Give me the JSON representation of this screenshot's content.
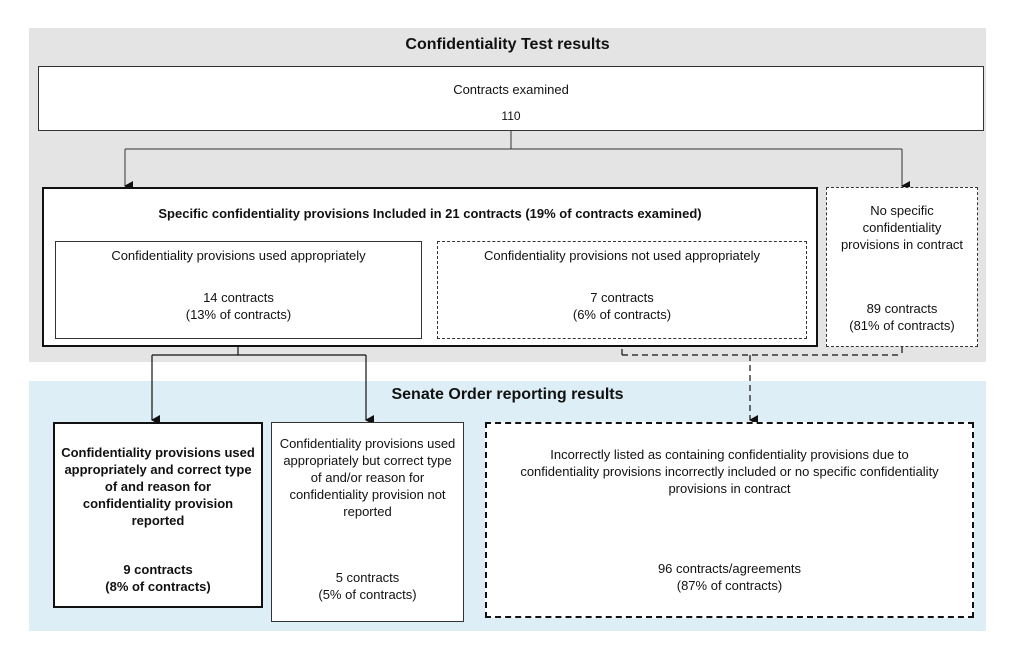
{
  "top_panel": {
    "title": "Confidentiality Test results",
    "examined": {
      "label": "Contracts examined",
      "count": "110"
    },
    "included": {
      "title": "Specific confidentiality provisions Included in 21 contracts (19% of contracts examined)",
      "appropriate": {
        "label": "Confidentiality provisions used appropriately",
        "count": "14 contracts",
        "pct": "(13% of contracts)"
      },
      "not_appropriate": {
        "label": "Confidentiality provisions not used appropriately",
        "count": "7 contracts",
        "pct": "(6% of contracts)"
      }
    },
    "none": {
      "label": "No specific confidentiality provisions in contract",
      "count": "89 contracts",
      "pct": "(81% of contracts)"
    }
  },
  "bottom_panel": {
    "title": "Senate Order reporting results",
    "reported": {
      "label": "Confidentiality provisions used appropriately and correct type of and reason for confidentiality provision reported",
      "count": "9 contracts",
      "pct": "(8% of contracts)"
    },
    "not_reported": {
      "label": "Confidentiality provisions used appropriately but correct type of and/or reason for confidentiality provision not reported",
      "count": "5 contracts",
      "pct": "(5% of contracts)"
    },
    "incorrect": {
      "label": "Incorrectly listed as containing confidentiality provisions due to confidentiality provisions incorrectly included or no specific confidentiality provisions in contract",
      "count": "96 contracts/agreements",
      "pct": "(87% of contracts)"
    }
  }
}
